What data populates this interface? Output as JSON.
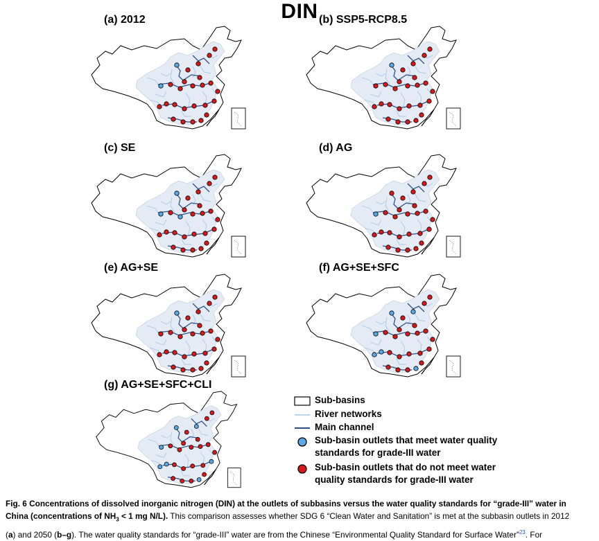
{
  "figure_title": "DIN",
  "panels": [
    {
      "label": "(a) 2012"
    },
    {
      "label": "(b) SSP5-RCP8.5"
    },
    {
      "label": "(c) SE"
    },
    {
      "label": "(d) AG"
    },
    {
      "label": "(e) AG+SE"
    },
    {
      "label": "(f) AG+SE+SFC"
    },
    {
      "label": "(g) AG+SE+SFC+CLI"
    }
  ],
  "legend": [
    {
      "key": "sub-basins",
      "text": "Sub-basins"
    },
    {
      "key": "river-networks",
      "text": "River networks"
    },
    {
      "key": "main-channel",
      "text": "Main channel"
    },
    {
      "key": "meet",
      "line1": "Sub-basin outlets that meet water quality",
      "line2": "standards for grade-III water"
    },
    {
      "key": "not-meet",
      "line1": "Sub-basin outlets that do not meet water",
      "line2": "quality standards for grade-III water"
    }
  ],
  "colors": {
    "meet": "#5aa9e6",
    "not_meet": "#d7191c",
    "river": "#a9c7e8",
    "main_channel": "#2c4f8c",
    "subbasin_fill": "#e4ebf4",
    "citation": "#2b4fb4"
  },
  "caption": {
    "fig_label": "Fig. 6",
    "bold_sentence_1": "Concentrations of dissolved inorganic nitrogen (DIN) at the outlets of subbasins versus the water quality standards for “grade-III” water in",
    "bold_sentence_2": "China (concentrations of NH",
    "subscript": "3",
    "bold_sentence_3": " < 1 mg N/L).",
    "line2_rest": " This comparison assesses whether SDG 6 “Clean Water and Sanitation” is met at the subbasin outlets in 2012",
    "line3_open": "(",
    "line3_a": "a",
    "line3_mid": ") and 2050 (",
    "line3_bg": "b–g",
    "line3_rest": "). The water quality standards for “grade-III” water are from the Chinese “Environmental Quality Standard for Surface Water”",
    "citation": "23",
    "line3_end": ". For"
  }
}
